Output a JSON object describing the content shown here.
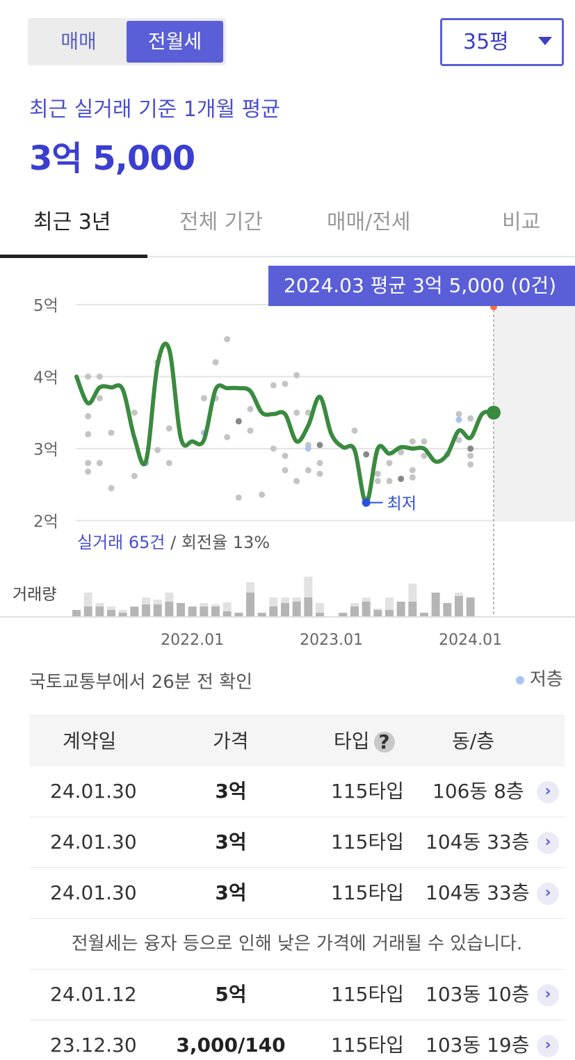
{
  "trade_toggle": {
    "options": [
      "매매",
      "전월세"
    ],
    "selected": "전월세"
  },
  "size_select": {
    "value": "35평"
  },
  "summary": {
    "subtitle": "최근 실거래 기준 1개월 평균",
    "price": "3억 5,000"
  },
  "tabs": [
    "최근 3년",
    "전체 기간",
    "매매/전세",
    "비교"
  ],
  "tooltip": "2024.03 평균 3억 5,000 (0건)",
  "chart_data": {
    "type": "line",
    "y_unit": "억",
    "ylim": [
      2,
      5
    ],
    "y_ticks": [
      {
        "v": 5,
        "label": "5억"
      },
      {
        "v": 4,
        "label": "4억"
      },
      {
        "v": 3,
        "label": "3억"
      },
      {
        "v": 2,
        "label": "2억"
      }
    ],
    "x_ticks": [
      {
        "date": "2022-01",
        "label": "2022.01"
      },
      {
        "date": "2023-01",
        "label": "2023.01"
      },
      {
        "date": "2024-01",
        "label": "2024.01"
      }
    ],
    "series": [
      {
        "kind": "monthly-average",
        "color": "#3a8a3f",
        "points": [
          [
            "2021-03",
            4.0
          ],
          [
            "2021-04",
            3.63
          ],
          [
            "2021-05",
            3.85
          ],
          [
            "2021-06",
            3.85
          ],
          [
            "2021-07",
            3.82
          ],
          [
            "2021-08",
            3.15
          ],
          [
            "2021-09",
            2.83
          ],
          [
            "2021-10",
            4.17
          ],
          [
            "2021-11",
            4.38
          ],
          [
            "2021-12",
            3.15
          ],
          [
            "2022-01",
            3.1
          ],
          [
            "2022-02",
            3.12
          ],
          [
            "2022-03",
            3.82
          ],
          [
            "2022-04",
            3.84
          ],
          [
            "2022-05",
            3.84
          ],
          [
            "2022-06",
            3.8
          ],
          [
            "2022-07",
            3.5
          ],
          [
            "2022-08",
            3.48
          ],
          [
            "2022-09",
            3.48
          ],
          [
            "2022-10",
            3.1
          ],
          [
            "2022-11",
            3.32
          ],
          [
            "2022-12",
            3.72
          ],
          [
            "2023-01",
            3.2
          ],
          [
            "2023-02",
            3.02
          ],
          [
            "2023-03",
            2.98
          ],
          [
            "2023-04",
            2.25
          ],
          [
            "2023-05",
            3.0
          ],
          [
            "2023-06",
            2.93
          ],
          [
            "2023-07",
            3.02
          ],
          [
            "2023-08",
            3.0
          ],
          [
            "2023-09",
            3.0
          ],
          [
            "2023-10",
            2.82
          ],
          [
            "2023-11",
            2.92
          ],
          [
            "2023-12",
            3.25
          ],
          [
            "2024-01",
            3.15
          ],
          [
            "2024-02",
            3.48
          ],
          [
            "2024-03",
            3.5
          ]
        ]
      }
    ],
    "scatter_points": [
      [
        "2021-04",
        4.0
      ],
      [
        "2021-04",
        3.45
      ],
      [
        "2021-04",
        3.2
      ],
      [
        "2021-04",
        2.8
      ],
      [
        "2021-04",
        2.68
      ],
      [
        "2021-05",
        4.0
      ],
      [
        "2021-05",
        3.7
      ],
      [
        "2021-05",
        2.8
      ],
      [
        "2021-06",
        3.22
      ],
      [
        "2021-06",
        2.45
      ],
      [
        "2021-08",
        3.5
      ],
      [
        "2021-08",
        2.62
      ],
      [
        "2021-10",
        2.98
      ],
      [
        "2021-10",
        4.2
      ],
      [
        "2021-11",
        3.28
      ],
      [
        "2021-11",
        2.8
      ],
      [
        "2022-02",
        3.7
      ],
      [
        "2022-02",
        3.22
      ],
      [
        "2022-03",
        4.2
      ],
      [
        "2022-03",
        3.7
      ],
      [
        "2022-04",
        4.52
      ],
      [
        "2022-04",
        3.16
      ],
      [
        "2022-05",
        3.38
      ],
      [
        "2022-05",
        2.32
      ],
      [
        "2022-06",
        3.55
      ],
      [
        "2022-06",
        3.25
      ],
      [
        "2022-07",
        2.36
      ],
      [
        "2022-08",
        3.88
      ],
      [
        "2022-08",
        3.0
      ],
      [
        "2022-09",
        3.9
      ],
      [
        "2022-09",
        2.9
      ],
      [
        "2022-09",
        2.7
      ],
      [
        "2022-10",
        4.02
      ],
      [
        "2022-10",
        3.5
      ],
      [
        "2022-10",
        2.55
      ],
      [
        "2022-11",
        3.5
      ],
      [
        "2022-11",
        3.05
      ],
      [
        "2022-11",
        2.7
      ],
      [
        "2022-12",
        2.8
      ],
      [
        "2022-12",
        2.65
      ],
      [
        "2023-03",
        3.25
      ],
      [
        "2023-04",
        2.3
      ],
      [
        "2023-05",
        2.65
      ],
      [
        "2023-05",
        2.55
      ],
      [
        "2023-06",
        2.55
      ],
      [
        "2023-06",
        2.8
      ],
      [
        "2023-07",
        2.58
      ],
      [
        "2023-07",
        2.95
      ],
      [
        "2023-08",
        3.1
      ],
      [
        "2023-08",
        2.7
      ],
      [
        "2023-08",
        2.6
      ],
      [
        "2023-09",
        3.1
      ],
      [
        "2023-09",
        2.9
      ],
      [
        "2023-11",
        2.92
      ],
      [
        "2023-12",
        3.48
      ],
      [
        "2023-12",
        3.12
      ],
      [
        "2024-01",
        3.42
      ],
      [
        "2024-01",
        3.0
      ],
      [
        "2024-01",
        2.9
      ],
      [
        "2024-01",
        2.78
      ]
    ],
    "low_floor_points": [
      [
        "2021-09",
        2.8
      ],
      [
        "2022-02",
        3.22
      ],
      [
        "2022-11",
        3.0
      ],
      [
        "2023-12",
        3.4
      ]
    ],
    "dark_points": [
      [
        "2022-05",
        3.38
      ],
      [
        "2022-12",
        3.05
      ],
      [
        "2023-04",
        2.92
      ],
      [
        "2023-07",
        2.58
      ],
      [
        "2024-01",
        3.0
      ]
    ],
    "high_point": [
      "2024-03",
      4.97
    ],
    "low_label": "최저",
    "low_point": [
      "2023-04",
      2.25
    ],
    "cursor_month": "2024-03",
    "volume_label": "거래량",
    "volume": [
      [
        "2021-03",
        1,
        0
      ],
      [
        "2021-04",
        1.5,
        3.5
      ],
      [
        "2021-05",
        1.5,
        2
      ],
      [
        "2021-06",
        1,
        1.5
      ],
      [
        "2021-07",
        0.6,
        1
      ],
      [
        "2021-08",
        1.5,
        1.5
      ],
      [
        "2021-09",
        1.8,
        2.8
      ],
      [
        "2021-10",
        1.8,
        2.5
      ],
      [
        "2021-11",
        2.2,
        3.5
      ],
      [
        "2021-12",
        2,
        2
      ],
      [
        "2022-01",
        1.5,
        1.5
      ],
      [
        "2022-02",
        1.5,
        2
      ],
      [
        "2022-03",
        1.5,
        1.8
      ],
      [
        "2022-04",
        0.8,
        2.1
      ],
      [
        "2022-05",
        0.6,
        0.6
      ],
      [
        "2022-06",
        3.5,
        5
      ],
      [
        "2022-07",
        0.6,
        0.6
      ],
      [
        "2022-08",
        1.5,
        2.8
      ],
      [
        "2022-09",
        2,
        2.8
      ],
      [
        "2022-10",
        2.2,
        2.8
      ],
      [
        "2022-11",
        2.8,
        5.8
      ],
      [
        "2022-12",
        0.6,
        2
      ],
      [
        "2023-02",
        0.6,
        0.6
      ],
      [
        "2023-03",
        1.5,
        2
      ],
      [
        "2023-04",
        2.2,
        2.8
      ],
      [
        "2023-05",
        1,
        1.2
      ],
      [
        "2023-06",
        1,
        2.8
      ],
      [
        "2023-07",
        2.2,
        2.2
      ],
      [
        "2023-08",
        2.2,
        4.8
      ],
      [
        "2023-09",
        0.6,
        0.6
      ],
      [
        "2023-10",
        3.5,
        3.5
      ],
      [
        "2023-11",
        2,
        2
      ],
      [
        "2023-12",
        3,
        3.5
      ],
      [
        "2024-01",
        2.8,
        2.8
      ]
    ],
    "stats_label": "실거래 65건",
    "stats_rest": " / 회전율 13%"
  },
  "source_text": "국토교통부에서 26분 전 확인",
  "legend_low": "저층",
  "table": {
    "headers": {
      "date": "계약일",
      "price": "가격",
      "type": "타입",
      "unit": "동/층"
    },
    "help_icon": "?",
    "rows_top": [
      {
        "date": "24.01.30",
        "price": "3억",
        "type": "115타입",
        "unit": "106동 8층"
      },
      {
        "date": "24.01.30",
        "price": "3억",
        "type": "115타입",
        "unit": "104동 33층"
      },
      {
        "date": "24.01.30",
        "price": "3억",
        "type": "115타입",
        "unit": "104동 33층"
      }
    ],
    "note": "전월세는 융자 등으로 인해 낮은 가격에 거래될 수 있습니다.",
    "rows_bottom": [
      {
        "date": "24.01.12",
        "price": "5억",
        "type": "115타입",
        "unit": "103동 10층"
      },
      {
        "date": "23.12.30",
        "price": "3,000/140",
        "type": "115타입",
        "unit": "103동 19층"
      }
    ],
    "chevron": "›"
  }
}
